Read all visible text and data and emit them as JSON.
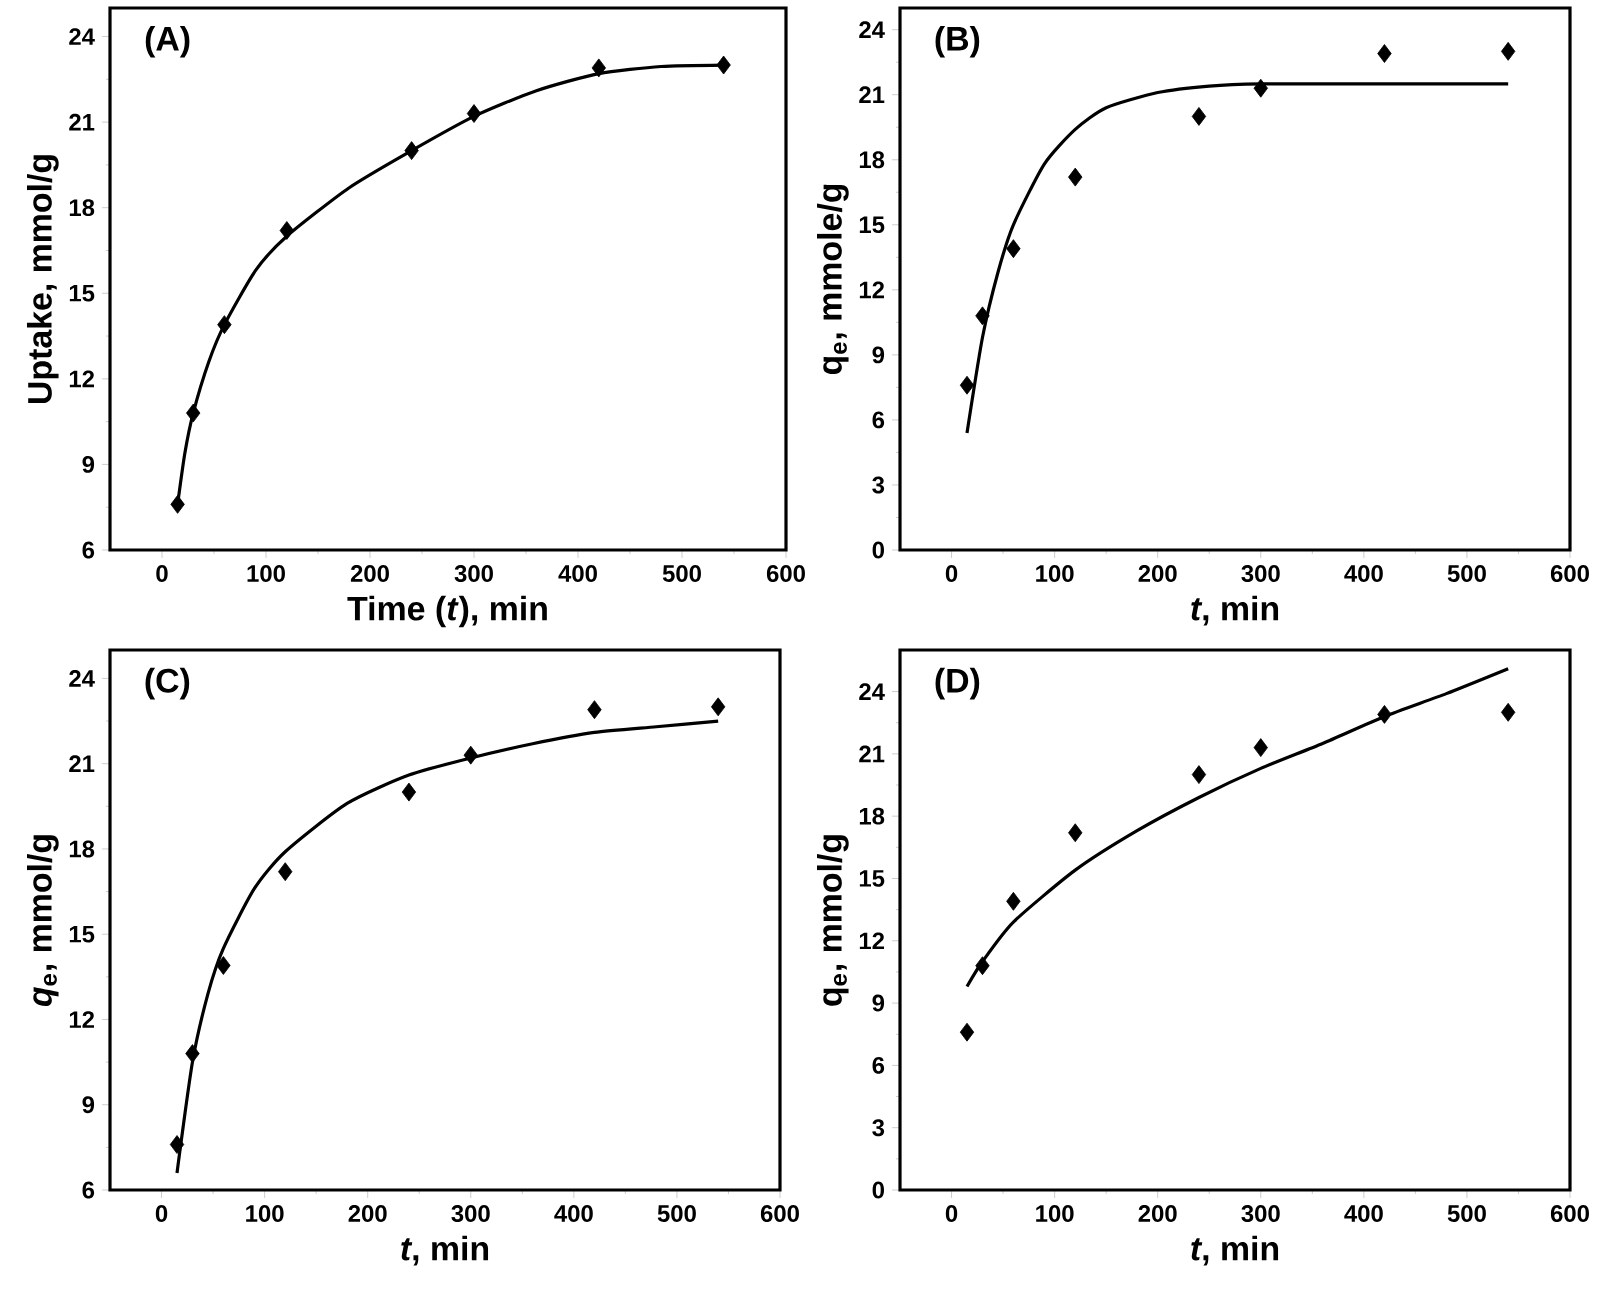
{
  "chart_data": [
    {
      "type": "scatter",
      "annotations": [
        "(A)"
      ],
      "xlabel": "Time (*t*), min",
      "ylabel": "Uptake, mmol/g",
      "xlim": [
        -50,
        600
      ],
      "ylim": [
        6,
        25
      ],
      "xticks": [
        0,
        100,
        200,
        300,
        400,
        500,
        600
      ],
      "yticks": [
        6,
        9,
        12,
        15,
        18,
        21,
        24
      ],
      "marker": "diamond",
      "grid": false,
      "series": [
        {
          "type": "scatter",
          "color": "#000000",
          "x": [
            15,
            30,
            60,
            120,
            240,
            300,
            420,
            540
          ],
          "values": [
            7.6,
            10.8,
            13.9,
            17.2,
            20.0,
            21.3,
            22.9,
            23.0
          ]
        },
        {
          "type": "line",
          "color": "#000000",
          "marker": "none",
          "x": [
            15,
            22,
            30,
            45,
            60,
            90,
            120,
            180,
            240,
            300,
            360,
            420,
            480,
            540
          ],
          "values": [
            7.6,
            9.4,
            10.8,
            12.6,
            13.9,
            15.8,
            17.0,
            18.7,
            20.0,
            21.2,
            22.1,
            22.7,
            22.95,
            23.0
          ]
        }
      ]
    },
    {
      "type": "scatter",
      "annotations": [
        "(B)"
      ],
      "xlabel": "*t*, min",
      "ylabel": "q$_{e}$, mmole/g",
      "xlim": [
        -50,
        600
      ],
      "ylim": [
        0,
        25
      ],
      "xticks": [
        0,
        100,
        200,
        300,
        400,
        500,
        600
      ],
      "yticks": [
        0,
        3,
        6,
        9,
        12,
        15,
        18,
        21,
        24
      ],
      "marker": "diamond",
      "grid": false,
      "series": [
        {
          "type": "scatter",
          "color": "#000000",
          "x": [
            15,
            30,
            60,
            120,
            240,
            300,
            420,
            540
          ],
          "values": [
            7.6,
            10.8,
            13.9,
            17.2,
            20.0,
            21.3,
            22.9,
            23.0
          ]
        },
        {
          "type": "line",
          "color": "#000000",
          "marker": "none",
          "x": [
            15,
            30,
            45,
            60,
            90,
            120,
            150,
            200,
            250,
            300,
            400,
            540
          ],
          "values": [
            5.4,
            9.8,
            12.8,
            15.0,
            17.8,
            19.4,
            20.4,
            21.1,
            21.4,
            21.5,
            21.5,
            21.5
          ]
        }
      ]
    },
    {
      "type": "scatter",
      "annotations": [
        "(C)"
      ],
      "xlabel": "*t*, min",
      "ylabel": "*q*$_{e}$, mmol/g",
      "xlim": [
        -50,
        600
      ],
      "ylim": [
        6,
        25
      ],
      "xticks": [
        0,
        100,
        200,
        300,
        400,
        500,
        600
      ],
      "yticks": [
        6,
        9,
        12,
        15,
        18,
        21,
        24
      ],
      "marker": "diamond",
      "grid": false,
      "series": [
        {
          "type": "scatter",
          "color": "#000000",
          "x": [
            15,
            30,
            60,
            120,
            240,
            300,
            420,
            540
          ],
          "values": [
            7.6,
            10.8,
            13.9,
            17.2,
            20.0,
            21.3,
            22.9,
            23.0
          ]
        },
        {
          "type": "line",
          "color": "#000000",
          "marker": "none",
          "x": [
            15,
            30,
            45,
            60,
            90,
            120,
            180,
            240,
            300,
            360,
            420,
            480,
            540
          ],
          "values": [
            6.6,
            10.5,
            12.9,
            14.5,
            16.6,
            17.9,
            19.6,
            20.6,
            21.2,
            21.7,
            22.1,
            22.3,
            22.5
          ]
        }
      ]
    },
    {
      "type": "scatter",
      "annotations": [
        "(D)"
      ],
      "xlabel": "*t*, min",
      "ylabel": "q$_{e}$, mmol/g",
      "xlim": [
        -50,
        600
      ],
      "ylim": [
        0,
        26
      ],
      "xticks": [
        0,
        100,
        200,
        300,
        400,
        500,
        600
      ],
      "yticks": [
        0,
        3,
        6,
        9,
        12,
        15,
        18,
        21,
        24
      ],
      "marker": "diamond",
      "grid": false,
      "series": [
        {
          "type": "scatter",
          "color": "#000000",
          "x": [
            15,
            30,
            60,
            120,
            240,
            300,
            420,
            540
          ],
          "values": [
            7.6,
            10.8,
            13.9,
            17.2,
            20.0,
            21.3,
            22.9,
            23.0
          ]
        },
        {
          "type": "line",
          "color": "#000000",
          "marker": "none",
          "x": [
            15,
            30,
            60,
            120,
            180,
            240,
            300,
            360,
            420,
            480,
            540
          ],
          "values": [
            9.8,
            11.0,
            12.9,
            15.4,
            17.3,
            18.9,
            20.3,
            21.5,
            22.8,
            23.9,
            25.1
          ]
        }
      ]
    }
  ]
}
